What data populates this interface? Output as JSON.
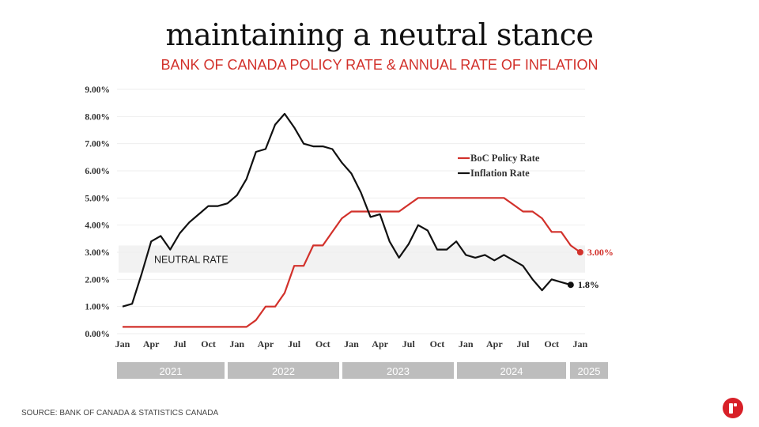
{
  "header": {
    "title": "maintaining a neutral stance",
    "subtitle": "BANK OF CANADA POLICY RATE & ANNUAL RATE OF INFLATION"
  },
  "footer": {
    "source": "SOURCE: BANK OF CANADA & STATISTICS CANADA",
    "logo_icon": "brand-logo-icon"
  },
  "colors": {
    "policy": "#d2312b",
    "inflation": "#111111",
    "band": "#f2f2f2",
    "year_bar": "#bdbdbd"
  },
  "chart_data": {
    "type": "line",
    "title": "BANK OF CANADA POLICY RATE & ANNUAL RATE OF INFLATION",
    "xlabel": "",
    "ylabel": "",
    "ylim": [
      0,
      9
    ],
    "yticks": [
      "0.00%",
      "1.00%",
      "2.00%",
      "3.00%",
      "4.00%",
      "5.00%",
      "6.00%",
      "7.00%",
      "8.00%",
      "9.00%"
    ],
    "xtick_labels": [
      "Jan",
      "Apr",
      "Jul",
      "Oct",
      "Jan",
      "Apr",
      "Jul",
      "Oct",
      "Jan",
      "Apr",
      "Jul",
      "Oct",
      "Jan",
      "Apr",
      "Jul",
      "Oct",
      "Jan"
    ],
    "years": [
      "2021",
      "2022",
      "2023",
      "2024",
      "2025"
    ],
    "grid": true,
    "legend": {
      "position": "upper-right",
      "entries": [
        "BoC Policy Rate",
        "Inflation Rate"
      ]
    },
    "neutral_band": {
      "label": "NEUTRAL RATE",
      "range": [
        2.25,
        3.25
      ]
    },
    "series": [
      {
        "name": "BoC Policy Rate",
        "start": "2021-01",
        "values": [
          0.25,
          0.25,
          0.25,
          0.25,
          0.25,
          0.25,
          0.25,
          0.25,
          0.25,
          0.25,
          0.25,
          0.25,
          0.25,
          0.25,
          0.5,
          1.0,
          1.0,
          1.5,
          2.5,
          2.5,
          3.25,
          3.25,
          3.75,
          4.25,
          4.5,
          4.5,
          4.5,
          4.5,
          4.5,
          4.5,
          4.75,
          5.0,
          5.0,
          5.0,
          5.0,
          5.0,
          5.0,
          5.0,
          5.0,
          5.0,
          5.0,
          4.75,
          4.5,
          4.5,
          4.25,
          3.75,
          3.75,
          3.25,
          3.0
        ],
        "end_label": "3.00%"
      },
      {
        "name": "Inflation Rate",
        "start": "2021-01",
        "values": [
          1.0,
          1.1,
          2.2,
          3.4,
          3.6,
          3.1,
          3.7,
          4.1,
          4.4,
          4.7,
          4.7,
          4.8,
          5.1,
          5.7,
          6.7,
          6.8,
          7.7,
          8.1,
          7.6,
          7.0,
          6.9,
          6.9,
          6.8,
          6.3,
          5.9,
          5.2,
          4.3,
          4.4,
          3.4,
          2.8,
          3.3,
          4.0,
          3.8,
          3.1,
          3.1,
          3.4,
          2.9,
          2.8,
          2.9,
          2.7,
          2.9,
          2.7,
          2.5,
          2.0,
          1.6,
          2.0,
          1.9,
          1.8
        ],
        "end_label": "1.8%"
      }
    ]
  }
}
